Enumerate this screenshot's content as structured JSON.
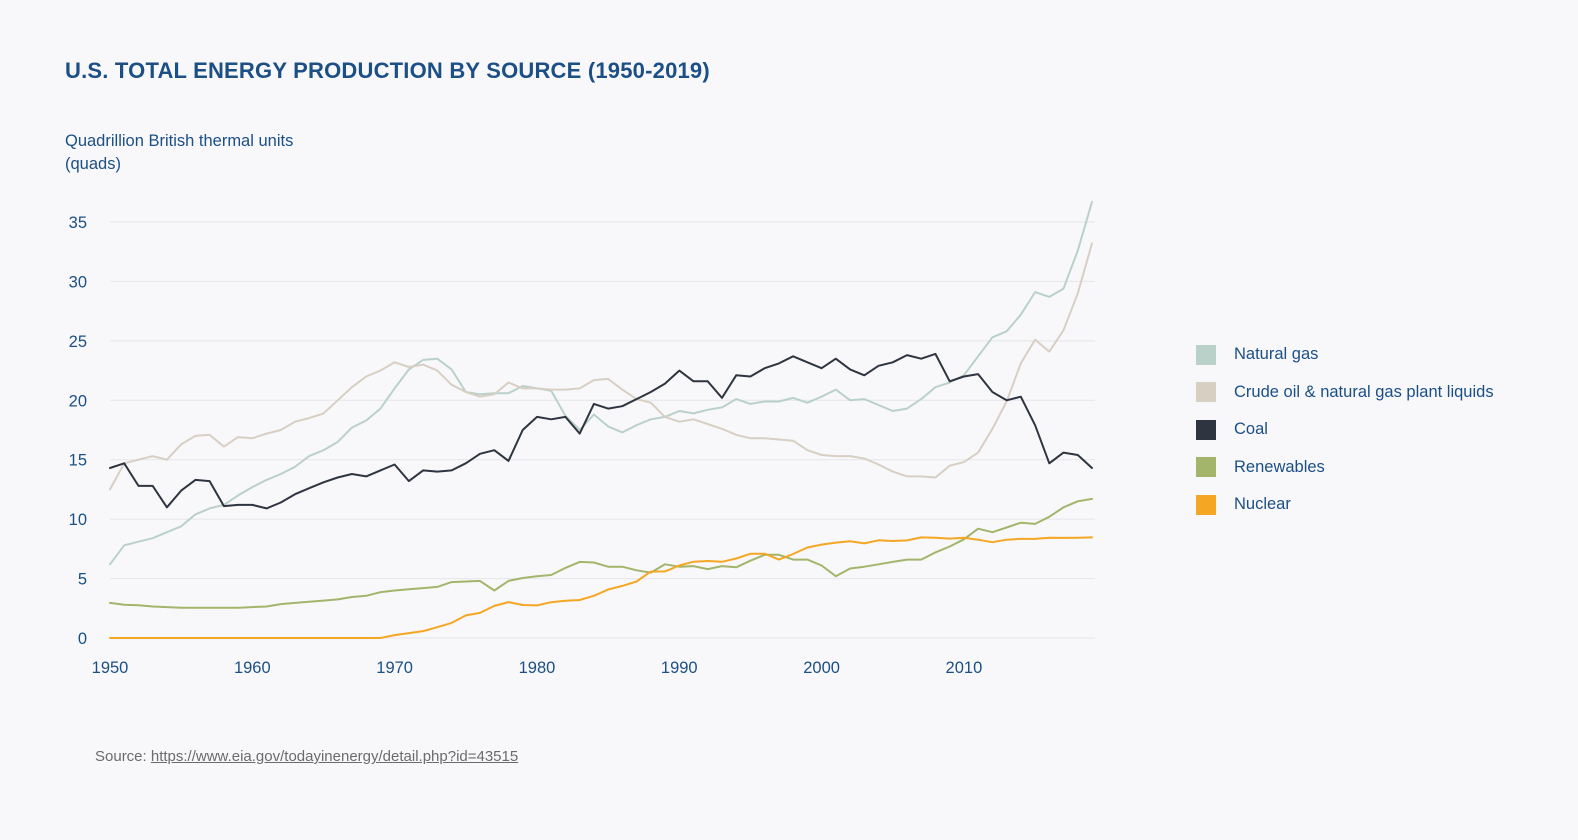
{
  "title": "U.S. TOTAL ENERGY PRODUCTION BY SOURCE (1950-2019)",
  "source": {
    "prefix": "Source:",
    "url": "https://www.eia.gov/todayinenergy/detail.php?id=43515"
  },
  "colors": {
    "axis_text": "#1b4f86",
    "grid": "#e6e6ea",
    "background": "#f8f8fa"
  },
  "chart_data": {
    "type": "line",
    "title": "U.S. TOTAL ENERGY PRODUCTION BY SOURCE (1950-2019)",
    "ylabel": "Quadrillion British thermal units (quads)",
    "xlabel": "",
    "xlim": [
      1950,
      2019
    ],
    "ylim": [
      0,
      37
    ],
    "yticks": [
      0,
      5,
      10,
      15,
      20,
      25,
      30,
      35
    ],
    "xticks": [
      1950,
      1960,
      1970,
      1980,
      1990,
      2000,
      2010
    ],
    "grid": true,
    "legend_position": "right",
    "x": [
      1950,
      1951,
      1952,
      1953,
      1954,
      1955,
      1956,
      1957,
      1958,
      1959,
      1960,
      1961,
      1962,
      1963,
      1964,
      1965,
      1966,
      1967,
      1968,
      1969,
      1970,
      1971,
      1972,
      1973,
      1974,
      1975,
      1976,
      1977,
      1978,
      1979,
      1980,
      1981,
      1982,
      1983,
      1984,
      1985,
      1986,
      1987,
      1988,
      1989,
      1990,
      1991,
      1992,
      1993,
      1994,
      1995,
      1996,
      1997,
      1998,
      1999,
      2000,
      2001,
      2002,
      2003,
      2004,
      2005,
      2006,
      2007,
      2008,
      2009,
      2010,
      2011,
      2012,
      2013,
      2014,
      2015,
      2016,
      2017,
      2018,
      2019
    ],
    "series": [
      {
        "name": "Natural gas",
        "color": "#b9d1c9",
        "values": [
          6.2,
          7.8,
          8.1,
          8.4,
          8.9,
          9.4,
          10.4,
          10.9,
          11.2,
          12.0,
          12.7,
          13.3,
          13.8,
          14.4,
          15.3,
          15.8,
          16.5,
          17.7,
          18.3,
          19.3,
          21.0,
          22.6,
          23.4,
          23.5,
          22.6,
          20.7,
          20.5,
          20.6,
          20.6,
          21.2,
          21.0,
          20.8,
          18.7,
          17.5,
          18.8,
          17.8,
          17.3,
          17.9,
          18.4,
          18.6,
          19.1,
          18.9,
          19.2,
          19.4,
          20.1,
          19.7,
          19.9,
          19.9,
          20.2,
          19.8,
          20.3,
          20.9,
          20.0,
          20.1,
          19.6,
          19.1,
          19.3,
          20.1,
          21.1,
          21.5,
          22.1,
          23.7,
          25.3,
          25.8,
          27.2,
          29.1,
          28.7,
          29.4,
          32.6,
          36.7
        ]
      },
      {
        "name": "Crude oil & natural gas plant liquids",
        "color": "#d8cfc3",
        "values": [
          12.5,
          14.7,
          15.0,
          15.3,
          15.0,
          16.3,
          17.0,
          17.1,
          16.1,
          16.9,
          16.8,
          17.2,
          17.5,
          18.2,
          18.5,
          18.9,
          20.0,
          21.1,
          22.0,
          22.5,
          23.2,
          22.8,
          23.0,
          22.5,
          21.3,
          20.7,
          20.3,
          20.5,
          21.5,
          21.0,
          21.0,
          20.9,
          20.9,
          21.0,
          21.7,
          21.8,
          20.9,
          20.1,
          19.8,
          18.6,
          18.2,
          18.4,
          18.0,
          17.6,
          17.1,
          16.8,
          16.8,
          16.7,
          16.6,
          15.8,
          15.4,
          15.3,
          15.3,
          15.1,
          14.6,
          14.0,
          13.6,
          13.6,
          13.5,
          14.5,
          14.8,
          15.6,
          17.6,
          19.9,
          23.1,
          25.1,
          24.1,
          25.9,
          29.0,
          33.2
        ]
      },
      {
        "name": "Coal",
        "color": "#2e3540",
        "values": [
          14.3,
          14.7,
          12.8,
          12.8,
          11.0,
          12.4,
          13.3,
          13.2,
          11.1,
          11.2,
          11.2,
          10.9,
          11.4,
          12.1,
          12.6,
          13.1,
          13.5,
          13.8,
          13.6,
          14.1,
          14.6,
          13.2,
          14.1,
          14.0,
          14.1,
          14.7,
          15.5,
          15.8,
          14.9,
          17.5,
          18.6,
          18.4,
          18.6,
          17.2,
          19.7,
          19.3,
          19.5,
          20.1,
          20.7,
          21.4,
          22.5,
          21.6,
          21.6,
          20.2,
          22.1,
          22.0,
          22.7,
          23.1,
          23.7,
          23.2,
          22.7,
          23.5,
          22.6,
          22.1,
          22.9,
          23.2,
          23.8,
          23.5,
          23.9,
          21.6,
          22.0,
          22.2,
          20.7,
          20.0,
          20.3,
          17.9,
          14.7,
          15.6,
          15.4,
          14.3
        ]
      },
      {
        "name": "Renewables",
        "color": "#a2b56b",
        "values": [
          2.95,
          2.8,
          2.75,
          2.65,
          2.6,
          2.55,
          2.55,
          2.55,
          2.55,
          2.55,
          2.6,
          2.65,
          2.85,
          2.95,
          3.05,
          3.15,
          3.25,
          3.45,
          3.55,
          3.85,
          4.0,
          4.1,
          4.2,
          4.3,
          4.7,
          4.75,
          4.8,
          4.0,
          4.8,
          5.05,
          5.2,
          5.3,
          5.9,
          6.4,
          6.35,
          6.0,
          6.0,
          5.7,
          5.5,
          6.2,
          6.0,
          6.05,
          5.8,
          6.05,
          5.95,
          6.5,
          7.0,
          7.0,
          6.6,
          6.6,
          6.1,
          5.2,
          5.85,
          6.0,
          6.2,
          6.4,
          6.6,
          6.6,
          7.2,
          7.7,
          8.3,
          9.2,
          8.9,
          9.3,
          9.7,
          9.6,
          10.2,
          11.0,
          11.5,
          11.7
        ]
      },
      {
        "name": "Nuclear",
        "color": "#f5a623",
        "values": [
          0,
          0,
          0,
          0,
          0,
          0,
          0,
          0,
          0,
          0,
          0,
          0,
          0,
          0,
          0,
          0,
          0,
          0,
          0,
          0,
          0.24,
          0.41,
          0.58,
          0.91,
          1.27,
          1.9,
          2.11,
          2.7,
          3.02,
          2.78,
          2.74,
          3.01,
          3.13,
          3.2,
          3.55,
          4.08,
          4.38,
          4.75,
          5.59,
          5.6,
          6.1,
          6.42,
          6.48,
          6.41,
          6.69,
          7.08,
          7.09,
          6.6,
          7.07,
          7.61,
          7.86,
          8.03,
          8.14,
          7.96,
          8.22,
          8.16,
          8.21,
          8.46,
          8.43,
          8.36,
          8.43,
          8.27,
          8.06,
          8.27,
          8.34,
          8.34,
          8.43,
          8.42,
          8.44,
          8.46
        ]
      }
    ]
  }
}
